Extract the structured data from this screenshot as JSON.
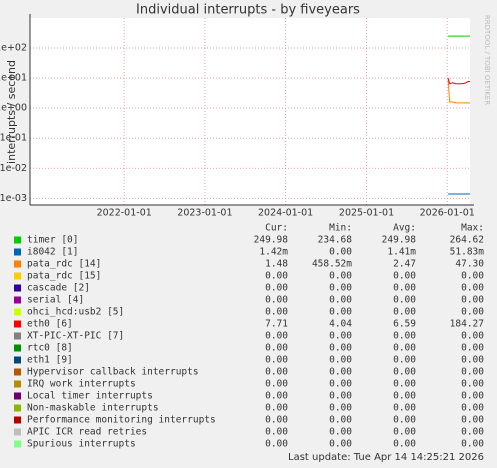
{
  "chart_data": {
    "type": "line",
    "title": "Individual interrupts - by fiveyears",
    "y_label": "interrupts / second",
    "watermark": "RRDTOOL / TOBI OETIKER",
    "log_y": true,
    "grid": true,
    "ylim": [
      0.0006,
      1000
    ],
    "yticks": [
      {
        "value": 0.001,
        "label": "1e-03"
      },
      {
        "value": 0.01,
        "label": "1e-02"
      },
      {
        "value": 0.1,
        "label": "1e-01"
      },
      {
        "value": 1,
        "label": "1e+00"
      },
      {
        "value": 10,
        "label": "1e+01"
      },
      {
        "value": 100,
        "label": "1e+02"
      }
    ],
    "xlim": [
      "2020-11-01",
      "2026-04-14"
    ],
    "xticks": [
      "2022-01-01",
      "2023-01-01",
      "2024-01-01",
      "2025-01-01",
      "2026-01-01"
    ],
    "x": [
      "2026-01-05",
      "2026-01-12",
      "2026-01-26",
      "2026-02-09",
      "2026-02-23",
      "2026-03-09",
      "2026-03-23",
      "2026-04-06",
      "2026-04-14"
    ],
    "columns": [
      "Cur:",
      "Min:",
      "Avg:",
      "Max:"
    ],
    "series": [
      {
        "name": "timer [0]",
        "color": "#00cc00",
        "values": [
          250,
          250,
          250,
          250,
          250,
          250,
          250,
          250,
          250
        ],
        "stats": [
          "249.98",
          "234.68",
          "249.98",
          "264.62"
        ]
      },
      {
        "name": "i8042 [1]",
        "color": "#0066b3",
        "values": [
          0.0014,
          0.0014,
          0.0014,
          0.0014,
          0.0014,
          0.0014,
          0.0014,
          0.0014,
          0.0014
        ],
        "stats": [
          "1.42m",
          "0.00",
          "1.41m",
          "51.83m"
        ]
      },
      {
        "name": "pata_rdc [14]",
        "color": "#ff8000",
        "values": [
          10,
          1.6,
          1.6,
          1.5,
          1.5,
          1.5,
          1.5,
          1.5,
          1.48
        ],
        "stats": [
          "1.48",
          "458.52m",
          "2.47",
          "47.30"
        ]
      },
      {
        "name": "pata_rdc [15]",
        "color": "#ffcc00",
        "stats": [
          "0.00",
          "0.00",
          "0.00",
          "0.00"
        ]
      },
      {
        "name": "cascade [2]",
        "color": "#330099",
        "stats": [
          "0.00",
          "0.00",
          "0.00",
          "0.00"
        ]
      },
      {
        "name": "serial [4]",
        "color": "#990099",
        "stats": [
          "0.00",
          "0.00",
          "0.00",
          "0.00"
        ]
      },
      {
        "name": "ohci_hcd:usb2 [5]",
        "color": "#ccff00",
        "stats": [
          "0.00",
          "0.00",
          "0.00",
          "0.00"
        ]
      },
      {
        "name": "eth0 [6]",
        "color": "#ff0000",
        "values": [
          10,
          6.5,
          7,
          6.5,
          6.5,
          6.5,
          6.8,
          7.7,
          7.71
        ],
        "stats": [
          "7.71",
          "4.04",
          "6.59",
          "184.27"
        ]
      },
      {
        "name": "XT-PIC-XT-PIC [7]",
        "color": "#808080",
        "stats": [
          "0.00",
          "0.00",
          "0.00",
          "0.00"
        ]
      },
      {
        "name": "rtc0 [8]",
        "color": "#008f00",
        "stats": [
          "0.00",
          "0.00",
          "0.00",
          "0.00"
        ]
      },
      {
        "name": "eth1 [9]",
        "color": "#00487d",
        "stats": [
          "0.00",
          "0.00",
          "0.00",
          "0.00"
        ]
      },
      {
        "name": "Hypervisor callback interrupts",
        "color": "#b35a00",
        "stats": [
          "0.00",
          "0.00",
          "0.00",
          "0.00"
        ]
      },
      {
        "name": "IRQ work interrupts",
        "color": "#b38f00",
        "stats": [
          "0.00",
          "0.00",
          "0.00",
          "0.00"
        ]
      },
      {
        "name": "Local timer interrupts",
        "color": "#6b006b",
        "stats": [
          "0.00",
          "0.00",
          "0.00",
          "0.00"
        ]
      },
      {
        "name": "Non-maskable interrupts",
        "color": "#8fb300",
        "stats": [
          "0.00",
          "0.00",
          "0.00",
          "0.00"
        ]
      },
      {
        "name": "Performance monitoring interrupts",
        "color": "#b30000",
        "stats": [
          "0.00",
          "0.00",
          "0.00",
          "0.00"
        ]
      },
      {
        "name": "APIC ICR read retries",
        "color": "#bebebe",
        "stats": [
          "0.00",
          "0.00",
          "0.00",
          "0.00"
        ]
      },
      {
        "name": "Spurious interrupts",
        "color": "#80ff80",
        "stats": [
          "0.00",
          "0.00",
          "0.00",
          "0.00"
        ]
      }
    ],
    "footer": "Last update: Tue Apr 14 14:25:21 2026"
  }
}
